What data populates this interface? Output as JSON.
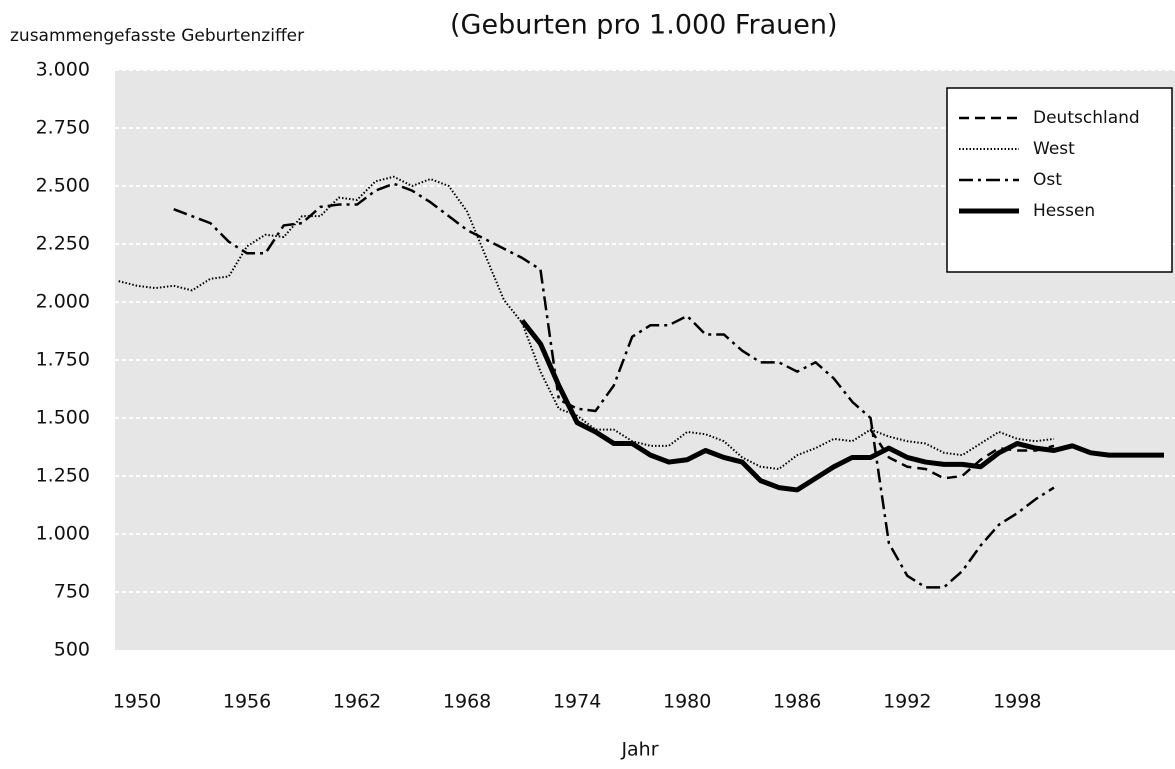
{
  "chart_data": {
    "type": "line",
    "title": "(Geburten pro 1.000 Frauen)",
    "y_label": "zusammengefasste Geburtenziffer",
    "x_label": "Jahr",
    "xlim": [
      1948.8,
      2006.6
    ],
    "xticks": [
      1950,
      1956,
      1962,
      1968,
      1974,
      1980,
      1986,
      1992,
      1998
    ],
    "ylim": [
      500,
      3000
    ],
    "yticks": [
      {
        "value": 500,
        "label": "500"
      },
      {
        "value": 750,
        "label": "750"
      },
      {
        "value": 1000,
        "label": "1.000"
      },
      {
        "value": 1250,
        "label": "1.250"
      },
      {
        "value": 1500,
        "label": "1.500"
      },
      {
        "value": 1750,
        "label": "1.750"
      },
      {
        "value": 2000,
        "label": "2.000"
      },
      {
        "value": 2250,
        "label": "2.250"
      },
      {
        "value": 2500,
        "label": "2.500"
      },
      {
        "value": 2750,
        "label": "2.750"
      },
      {
        "value": 3000,
        "label": "3.000"
      }
    ],
    "grid": true,
    "legend": "upper right",
    "series": [
      {
        "name": "Deutschland",
        "color": "#000000",
        "style": "dashed",
        "x": [
          1990,
          1991,
          1992,
          1993,
          1994,
          1995,
          1996,
          1997,
          1998,
          1999,
          2000
        ],
        "values": [
          1450,
          1330,
          1290,
          1280,
          1240,
          1250,
          1320,
          1370,
          1360,
          1360,
          1380
        ]
      },
      {
        "name": "West",
        "color": "#000000",
        "style": "dotted",
        "x": [
          1949,
          1950,
          1951,
          1952,
          1953,
          1954,
          1955,
          1956,
          1957,
          1958,
          1959,
          1960,
          1961,
          1962,
          1963,
          1964,
          1965,
          1966,
          1967,
          1968,
          1969,
          1970,
          1971,
          1972,
          1973,
          1974,
          1975,
          1976,
          1977,
          1978,
          1979,
          1980,
          1981,
          1982,
          1983,
          1984,
          1985,
          1986,
          1987,
          1988,
          1989,
          1990,
          1991,
          1992,
          1993,
          1994,
          1995,
          1996,
          1997,
          1998,
          1999,
          2000
        ],
        "values": [
          2090,
          2070,
          2060,
          2070,
          2050,
          2100,
          2110,
          2240,
          2290,
          2280,
          2370,
          2370,
          2450,
          2440,
          2520,
          2540,
          2500,
          2530,
          2500,
          2390,
          2200,
          2010,
          1910,
          1700,
          1540,
          1510,
          1450,
          1450,
          1400,
          1380,
          1380,
          1440,
          1430,
          1400,
          1330,
          1290,
          1280,
          1340,
          1370,
          1410,
          1400,
          1450,
          1420,
          1400,
          1390,
          1350,
          1340,
          1390,
          1440,
          1410,
          1400,
          1410
        ]
      },
      {
        "name": "Ost",
        "color": "#000000",
        "style": "dashdot",
        "x": [
          1952,
          1953,
          1954,
          1955,
          1956,
          1957,
          1958,
          1959,
          1960,
          1961,
          1962,
          1963,
          1964,
          1965,
          1966,
          1967,
          1968,
          1969,
          1970,
          1971,
          1972,
          1973,
          1974,
          1975,
          1976,
          1977,
          1978,
          1979,
          1980,
          1981,
          1982,
          1983,
          1984,
          1985,
          1986,
          1987,
          1988,
          1989,
          1990,
          1991,
          1992,
          1993,
          1994,
          1995,
          1996,
          1997,
          1998,
          1999,
          2000
        ],
        "values": [
          2400,
          2370,
          2340,
          2260,
          2210,
          2210,
          2330,
          2340,
          2410,
          2420,
          2420,
          2480,
          2510,
          2480,
          2430,
          2370,
          2310,
          2270,
          2230,
          2190,
          2140,
          1580,
          1540,
          1530,
          1640,
          1850,
          1900,
          1900,
          1940,
          1860,
          1860,
          1790,
          1740,
          1740,
          1700,
          1740,
          1670,
          1570,
          1500,
          960,
          820,
          770,
          770,
          840,
          950,
          1040,
          1090,
          1150,
          1200
        ]
      },
      {
        "name": "Hessen",
        "color": "#000000",
        "style": "solid",
        "x": [
          1971,
          1972,
          1973,
          1974,
          1975,
          1976,
          1977,
          1978,
          1979,
          1980,
          1981,
          1982,
          1983,
          1984,
          1985,
          1986,
          1987,
          1988,
          1989,
          1990,
          1991,
          1992,
          1993,
          1994,
          1995,
          1996,
          1997,
          1998,
          1999,
          2000,
          2001,
          2002,
          2003,
          2004,
          2005,
          2006
        ],
        "values": [
          1920,
          1820,
          1640,
          1480,
          1440,
          1390,
          1390,
          1340,
          1310,
          1320,
          1360,
          1330,
          1310,
          1230,
          1200,
          1190,
          1240,
          1290,
          1330,
          1330,
          1370,
          1330,
          1310,
          1300,
          1300,
          1290,
          1350,
          1390,
          1370,
          1360,
          1380,
          1350,
          1340,
          1340,
          1340,
          1340
        ]
      }
    ]
  }
}
